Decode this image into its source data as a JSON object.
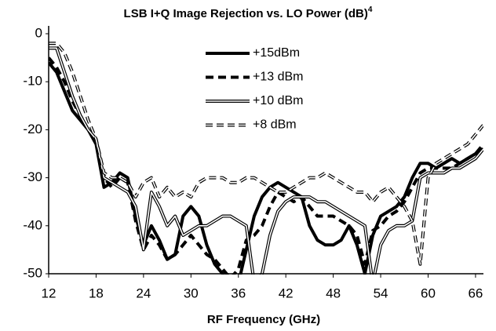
{
  "chart_data": {
    "type": "line",
    "title": "LSB I+Q Image Rejection vs. LO Power (dB)",
    "title_superscript": "4",
    "x_label": "RF Frequency (GHz)",
    "x": [
      12,
      13,
      14,
      15,
      16,
      17,
      18,
      19,
      20,
      21,
      22,
      23,
      24,
      25,
      26,
      27,
      28,
      29,
      30,
      31,
      32,
      33,
      34,
      35,
      36,
      37,
      38,
      39,
      40,
      41,
      42,
      43,
      44,
      45,
      46,
      47,
      48,
      49,
      50,
      51,
      52,
      53,
      54,
      55,
      56,
      57,
      58,
      59,
      60,
      61,
      62,
      63,
      64,
      65,
      66,
      67
    ],
    "xlim": [
      12,
      67
    ],
    "xticks": [
      12,
      18,
      24,
      30,
      36,
      42,
      48,
      54,
      60,
      66
    ],
    "ylim": [
      -50,
      0
    ],
    "yticks": [
      0,
      -10,
      -20,
      -30,
      -40,
      -50
    ],
    "grid": false,
    "legend": "top",
    "series": [
      {
        "name": "+15dBm",
        "color": "#000000",
        "line_style": "solid",
        "double": false,
        "values": [
          -6,
          -8,
          -12,
          -16,
          -18,
          -20,
          -23,
          -32,
          -31,
          -29,
          -30,
          -38,
          -44,
          -40,
          -43,
          -47,
          -46,
          -38,
          -36,
          -38,
          -44,
          -48,
          -50,
          -53,
          -52,
          -45,
          -38,
          -34,
          -32,
          -31,
          -32,
          -33,
          -34,
          -40,
          -43,
          -44,
          -44,
          -43,
          -40,
          -44,
          -50,
          -42,
          -38,
          -37,
          -36,
          -34,
          -30,
          -27,
          -27,
          -28,
          -27,
          -26,
          -27,
          -26,
          -25,
          -24
        ]
      },
      {
        "name": "+13 dBm",
        "color": "#000000",
        "line_style": "dashed",
        "double": false,
        "values": [
          -5,
          -7,
          -10,
          -14,
          -17,
          -20,
          -22,
          -30,
          -32,
          -30,
          -31,
          -39,
          -45,
          -42,
          -44,
          -47,
          -46,
          -44,
          -42,
          -44,
          -46,
          -47,
          -49,
          -51,
          -49,
          -43,
          -42,
          -40,
          -36,
          -33,
          -34,
          -35,
          -34,
          -36,
          -38,
          -38,
          -38,
          -39,
          -40,
          -42,
          -48,
          -41,
          -40,
          -38,
          -37,
          -35,
          -32,
          -29,
          -28,
          -28,
          -28,
          -28,
          -27,
          -26,
          -25,
          -23
        ]
      },
      {
        "name": "+10 dBm",
        "color": "#000000",
        "line_style": "solid",
        "double": true,
        "values": [
          -3,
          -3,
          -8,
          -13,
          -17,
          -20,
          -22,
          -30,
          -31,
          -32,
          -33,
          -36,
          -45,
          -33,
          -36,
          -40,
          -38,
          -42,
          -41,
          -40,
          -40,
          -39,
          -38,
          -38,
          -39,
          -40,
          -52,
          -50,
          -42,
          -37,
          -35,
          -34,
          -34,
          -34,
          -35,
          -35,
          -36,
          -37,
          -38,
          -39,
          -40,
          -52,
          -44,
          -41,
          -40,
          -40,
          -39,
          -30,
          -29,
          -29,
          -29,
          -28,
          -28,
          -27,
          -26,
          -24
        ]
      },
      {
        "name": "+8 dBm",
        "color": "#000000",
        "line_style": "dashed",
        "double": true,
        "values": [
          -2,
          -2,
          -4,
          -8,
          -13,
          -18,
          -22,
          -29,
          -30,
          -30,
          -31,
          -34,
          -31,
          -30,
          -34,
          -32,
          -34,
          -33,
          -34,
          -31,
          -30,
          -30,
          -30,
          -31,
          -31,
          -30,
          -30,
          -31,
          -32,
          -33,
          -33,
          -32,
          -31,
          -30,
          -30,
          -29,
          -30,
          -31,
          -32,
          -33,
          -33,
          -35,
          -33,
          -32,
          -34,
          -36,
          -39,
          -48,
          -30,
          -27,
          -26,
          -25,
          -24,
          -23,
          -21,
          -19
        ]
      }
    ]
  }
}
